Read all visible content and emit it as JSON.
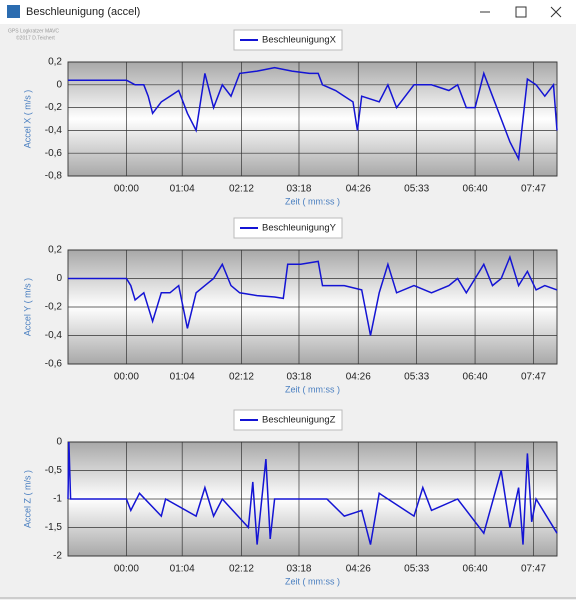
{
  "window": {
    "title": "Beschleunigung (accel)",
    "watermark": [
      "GPS Logkratzer MAVC",
      "©2017 D.Teichert"
    ]
  },
  "chart_data": [
    {
      "type": "line",
      "xlabel": "Zeit ( mm:ss )",
      "ylabel": "Accel X ( m/s )",
      "x": [
        -67,
        0,
        10,
        20,
        25,
        30,
        40,
        50,
        60,
        70,
        80,
        90,
        100,
        110,
        120,
        130,
        150,
        170,
        190,
        210,
        220,
        225,
        240,
        250,
        260,
        265,
        270,
        290,
        300,
        310,
        320,
        330,
        350,
        370,
        380,
        390,
        400,
        410,
        420,
        430,
        440,
        450,
        455,
        460,
        470,
        480,
        490,
        494
      ],
      "series": [
        {
          "name": "BeschleunigungX",
          "color": "#1414d4",
          "values": [
            0.04,
            0.04,
            0.0,
            0.0,
            -0.1,
            -0.25,
            -0.15,
            -0.1,
            -0.05,
            -0.25,
            -0.4,
            0.1,
            -0.2,
            0.0,
            -0.1,
            0.1,
            0.12,
            0.15,
            0.12,
            0.1,
            0.1,
            0.0,
            -0.05,
            -0.1,
            -0.15,
            -0.4,
            -0.1,
            -0.15,
            0.0,
            -0.2,
            -0.1,
            0.0,
            0.0,
            -0.05,
            0.0,
            -0.2,
            -0.2,
            0.1,
            -0.1,
            -0.3,
            -0.5,
            -0.65,
            -0.3,
            0.05,
            0.0,
            -0.1,
            0.0,
            -0.4
          ]
        }
      ],
      "xlim": [
        -67,
        494
      ],
      "xticks": [
        {
          "value": 0,
          "label": "00:00"
        },
        {
          "value": 64,
          "label": "01:04"
        },
        {
          "value": 132,
          "label": "02:12"
        },
        {
          "value": 198,
          "label": "03:18"
        },
        {
          "value": 266,
          "label": "04:26"
        },
        {
          "value": 333,
          "label": "05:33"
        },
        {
          "value": 400,
          "label": "06:40"
        },
        {
          "value": 467,
          "label": "07:47"
        }
      ],
      "ylim": [
        -0.8,
        0.2
      ],
      "yticks": [
        {
          "value": 0.2,
          "label": "0,2"
        },
        0,
        {
          "value": -0.2,
          "label": "-0,2"
        },
        {
          "value": -0.4,
          "label": "-0,4"
        },
        {
          "value": -0.6,
          "label": "-0,6"
        },
        {
          "value": -0.8,
          "label": "-0,8"
        }
      ],
      "grid": true
    },
    {
      "type": "line",
      "xlabel": "Zeit ( mm:ss )",
      "ylabel": "Accel Y ( m/s )",
      "x": [
        -67,
        0,
        5,
        10,
        20,
        30,
        40,
        50,
        60,
        70,
        80,
        90,
        100,
        110,
        120,
        130,
        150,
        170,
        180,
        185,
        200,
        220,
        225,
        250,
        270,
        280,
        290,
        300,
        310,
        330,
        350,
        370,
        380,
        390,
        400,
        410,
        420,
        430,
        440,
        450,
        460,
        470,
        480,
        494
      ],
      "series": [
        {
          "name": "BeschleunigungY",
          "color": "#1414d4",
          "values": [
            0,
            0,
            -0.05,
            -0.15,
            -0.1,
            -0.3,
            -0.1,
            -0.1,
            -0.05,
            -0.35,
            -0.1,
            -0.05,
            0.0,
            0.1,
            -0.05,
            -0.1,
            -0.12,
            -0.13,
            -0.14,
            0.1,
            0.1,
            0.12,
            -0.05,
            -0.05,
            -0.08,
            -0.4,
            -0.1,
            0.1,
            -0.1,
            -0.05,
            -0.1,
            -0.05,
            0.0,
            -0.1,
            0.0,
            0.1,
            -0.05,
            0.0,
            0.15,
            -0.05,
            0.05,
            -0.08,
            -0.05,
            -0.08
          ]
        }
      ],
      "xlim": [
        -67,
        494
      ],
      "xticks": [
        {
          "value": 0,
          "label": "00:00"
        },
        {
          "value": 64,
          "label": "01:04"
        },
        {
          "value": 132,
          "label": "02:12"
        },
        {
          "value": 198,
          "label": "03:18"
        },
        {
          "value": 266,
          "label": "04:26"
        },
        {
          "value": 333,
          "label": "05:33"
        },
        {
          "value": 400,
          "label": "06:40"
        },
        {
          "value": 467,
          "label": "07:47"
        }
      ],
      "ylim": [
        -0.6,
        0.2
      ],
      "yticks": [
        {
          "value": 0.2,
          "label": "0,2"
        },
        0,
        {
          "value": -0.2,
          "label": "-0,2"
        },
        {
          "value": -0.4,
          "label": "-0,4"
        },
        {
          "value": -0.6,
          "label": "-0,6"
        }
      ],
      "grid": true
    },
    {
      "type": "line",
      "xlabel": "Zeit ( mm:ss )",
      "ylabel": "Accel Z ( m/s )",
      "x": [
        -67,
        -66,
        -64,
        0,
        5,
        15,
        40,
        45,
        80,
        90,
        100,
        110,
        140,
        145,
        150,
        160,
        165,
        170,
        230,
        250,
        270,
        280,
        290,
        330,
        340,
        350,
        380,
        410,
        430,
        440,
        450,
        455,
        460,
        465,
        470,
        494
      ],
      "series": [
        {
          "name": "BeschleunigungZ",
          "color": "#1414d4",
          "values": [
            -1,
            0,
            -1,
            -1,
            -1.2,
            -0.9,
            -1.3,
            -1,
            -1.3,
            -0.8,
            -1.3,
            -1,
            -1.5,
            -0.7,
            -1.8,
            -0.3,
            -1.7,
            -1,
            -1,
            -1.3,
            -1.2,
            -1.8,
            -0.9,
            -1.3,
            -0.8,
            -1.2,
            -1,
            -1.6,
            -0.5,
            -1.5,
            -0.8,
            -1.8,
            -0.2,
            -1.4,
            -1,
            -1.6
          ]
        }
      ],
      "xlim": [
        -67,
        494
      ],
      "xticks": [
        {
          "value": 0,
          "label": "00:00"
        },
        {
          "value": 64,
          "label": "01:04"
        },
        {
          "value": 132,
          "label": "02:12"
        },
        {
          "value": 198,
          "label": "03:18"
        },
        {
          "value": 266,
          "label": "04:26"
        },
        {
          "value": 333,
          "label": "05:33"
        },
        {
          "value": 400,
          "label": "06:40"
        },
        {
          "value": 467,
          "label": "07:47"
        }
      ],
      "ylim": [
        -2,
        0
      ],
      "yticks": [
        0,
        {
          "value": -0.5,
          "label": "-0,5"
        },
        -1,
        {
          "value": -1.5,
          "label": "-1,5"
        },
        -2
      ],
      "grid": true
    }
  ]
}
